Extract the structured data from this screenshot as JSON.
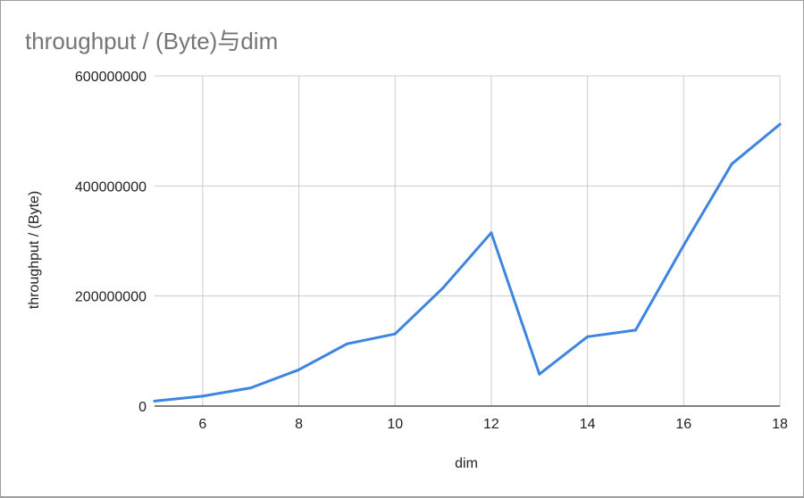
{
  "chart_data": {
    "type": "line",
    "title": "throughput / (Byte)与dim",
    "xlabel": "dim",
    "ylabel": "throughput / (Byte)",
    "xlim": [
      5,
      18
    ],
    "ylim": [
      0,
      600000000
    ],
    "x_ticks": [
      6,
      8,
      10,
      12,
      14,
      16,
      18
    ],
    "y_ticks": [
      0,
      200000000,
      400000000,
      600000000
    ],
    "x_tick_labels": [
      "6",
      "8",
      "10",
      "12",
      "14",
      "16",
      "18"
    ],
    "y_tick_labels": [
      "0",
      "200000000",
      "400000000",
      "600000000"
    ],
    "grid": true,
    "series": [
      {
        "color": "#3d85e0",
        "x": [
          5,
          6,
          7,
          8,
          9,
          10,
          11,
          12,
          13,
          14,
          15,
          16,
          17,
          18
        ],
        "y": [
          9000000,
          18000000,
          33000000,
          66000000,
          113000000,
          131000000,
          215000000,
          315000000,
          58000000,
          126000000,
          138000000,
          292000000,
          440000000,
          512000000
        ]
      }
    ]
  }
}
